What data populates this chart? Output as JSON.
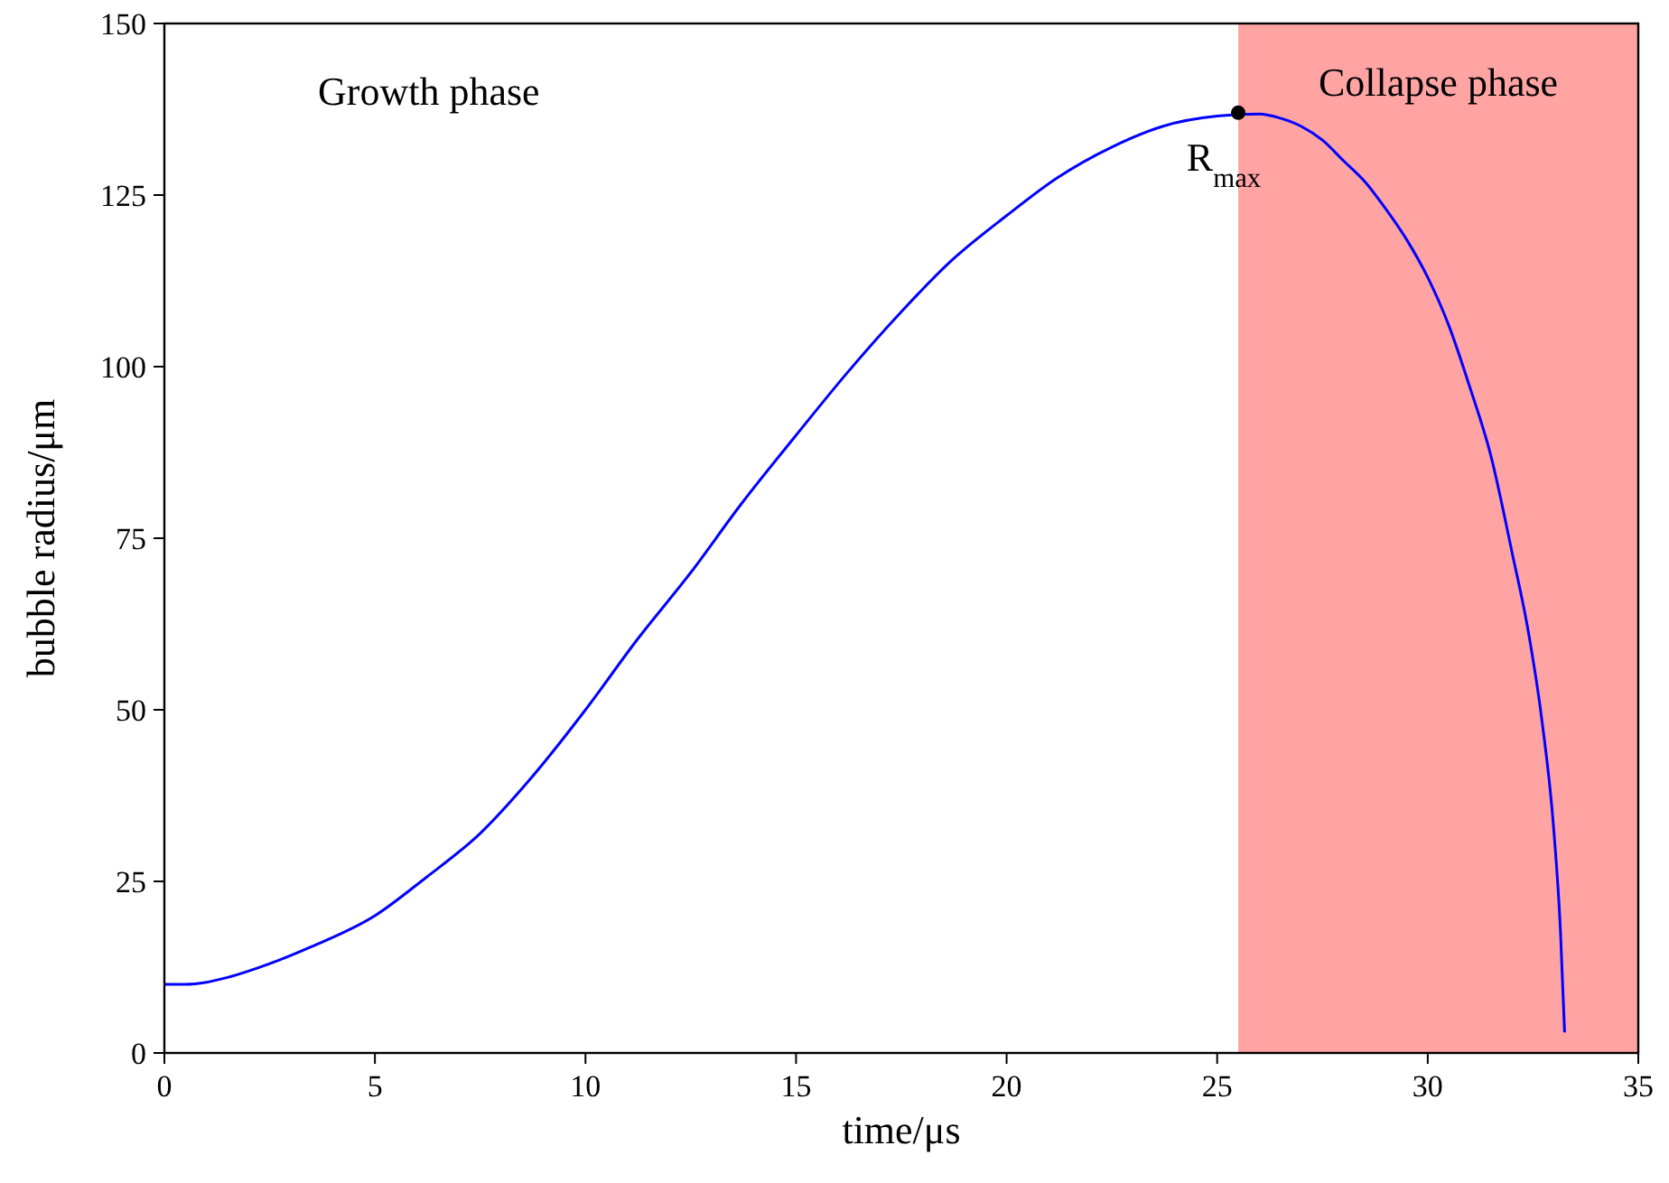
{
  "chart_data": {
    "type": "line",
    "xlabel": "time/μs",
    "ylabel": "bubble radius/μm",
    "xlim": [
      0,
      35
    ],
    "ylim": [
      0,
      150
    ],
    "xticks": [
      0,
      5,
      10,
      15,
      20,
      25,
      30,
      35
    ],
    "yticks": [
      0,
      25,
      50,
      75,
      100,
      125,
      150
    ],
    "grid": false,
    "series": [
      {
        "color": "#0000ff",
        "marker": "none",
        "x": [
          0,
          0.5,
          1,
          1.5,
          2.5,
          3.5,
          5,
          6.2,
          7.5,
          8.7,
          10,
          11.2,
          12.5,
          13.7,
          15,
          16.2,
          17.5,
          18.7,
          20,
          21.2,
          22.5,
          23.7,
          25,
          26,
          26.5,
          27,
          27.5,
          28,
          28.5,
          29,
          29.5,
          30,
          30.5,
          31,
          31.5,
          32,
          32.4,
          32.7,
          33,
          33.15,
          33.25
        ],
        "values": [
          10,
          10,
          10.3,
          11,
          13,
          15.5,
          20,
          25.5,
          32,
          40,
          50,
          60,
          70,
          80,
          90,
          99,
          108,
          115.5,
          122,
          127.5,
          132,
          135,
          136.5,
          136.8,
          136.2,
          135,
          133,
          130,
          127,
          123,
          118.5,
          113,
          106,
          97,
          87,
          73,
          61,
          49,
          32,
          18,
          3
        ]
      },
      {
        "type": "scatter",
        "color": "#000000",
        "marker": "circle",
        "x": [
          25.5
        ],
        "values": [
          137
        ]
      }
    ],
    "bands": [
      {
        "axis": "x",
        "from": 25.5,
        "to": 35,
        "label": "Collapse phase",
        "color": "#ffa3a3"
      }
    ],
    "annotations": [
      "Growth phase",
      {
        "text": "R$_{max}$",
        "x": 25.5,
        "y": 137
      }
    ]
  }
}
